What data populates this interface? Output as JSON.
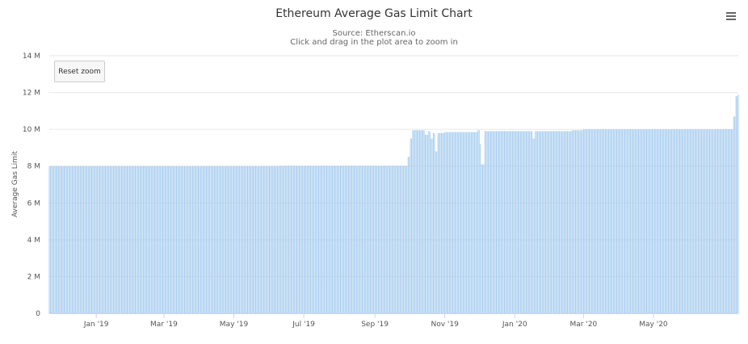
{
  "chart_data": {
    "type": "bar",
    "title": "Ethereum Average Gas Limit Chart",
    "subtitle": [
      "Source: Etherscan.io",
      "Click and drag in the plot area to zoom in"
    ],
    "xlabel": "",
    "ylabel": "Average Gas Limit",
    "ylim": [
      0,
      14000000
    ],
    "y_tick_labels": [
      "0",
      "2 M",
      "4 M",
      "6 M",
      "8 M",
      "10 M",
      "12 M",
      "14 M"
    ],
    "x_range": [
      "2018-11-21",
      "2020-07-14"
    ],
    "x_tick_labels": [
      {
        "date": "2019-01-01",
        "label": "Jan '19"
      },
      {
        "date": "2019-03-01",
        "label": "Mar '19"
      },
      {
        "date": "2019-05-01",
        "label": "May '19"
      },
      {
        "date": "2019-07-01",
        "label": "Jul '19"
      },
      {
        "date": "2019-09-01",
        "label": "Sep '19"
      },
      {
        "date": "2019-11-01",
        "label": "Nov '19"
      },
      {
        "date": "2020-01-01",
        "label": "Jan '20"
      },
      {
        "date": "2020-03-01",
        "label": "Mar '20"
      },
      {
        "date": "2020-05-01",
        "label": "May '20"
      }
    ],
    "grid": true,
    "legend": false,
    "series": [
      {
        "color": "#a8cdef",
        "points": [
          {
            "x": "2018-11-21",
            "y": 8000000
          },
          {
            "x": "2019-06-01",
            "y": 8000000
          },
          {
            "x": "2019-06-10",
            "y": 8020000
          },
          {
            "x": "2019-09-27",
            "y": 8010000
          },
          {
            "x": "2019-09-30",
            "y": 8500000
          },
          {
            "x": "2019-10-02",
            "y": 9500000
          },
          {
            "x": "2019-10-04",
            "y": 9950000
          },
          {
            "x": "2019-10-14",
            "y": 9950000
          },
          {
            "x": "2019-10-15",
            "y": 9700000
          },
          {
            "x": "2019-10-18",
            "y": 9900000
          },
          {
            "x": "2019-10-20",
            "y": 9500000
          },
          {
            "x": "2019-10-22",
            "y": 9800000
          },
          {
            "x": "2019-10-24",
            "y": 8800000
          },
          {
            "x": "2019-10-26",
            "y": 9800000
          },
          {
            "x": "2019-11-01",
            "y": 9850000
          },
          {
            "x": "2019-11-30",
            "y": 9950000
          },
          {
            "x": "2019-12-02",
            "y": 9200000
          },
          {
            "x": "2019-12-03",
            "y": 8100000
          },
          {
            "x": "2019-12-05",
            "y": 8100000
          },
          {
            "x": "2019-12-06",
            "y": 9900000
          },
          {
            "x": "2020-01-15",
            "y": 9900000
          },
          {
            "x": "2020-01-17",
            "y": 9500000
          },
          {
            "x": "2020-01-19",
            "y": 9900000
          },
          {
            "x": "2020-02-20",
            "y": 9950000
          },
          {
            "x": "2020-03-01",
            "y": 10000000
          },
          {
            "x": "2020-07-09",
            "y": 10000000
          },
          {
            "x": "2020-07-10",
            "y": 10700000
          },
          {
            "x": "2020-07-12",
            "y": 11800000
          },
          {
            "x": "2020-07-14",
            "y": 11900000
          }
        ]
      }
    ]
  },
  "toolbar": {
    "reset_zoom_label": "Reset zoom",
    "menu_icon": "hamburger-menu-icon"
  }
}
